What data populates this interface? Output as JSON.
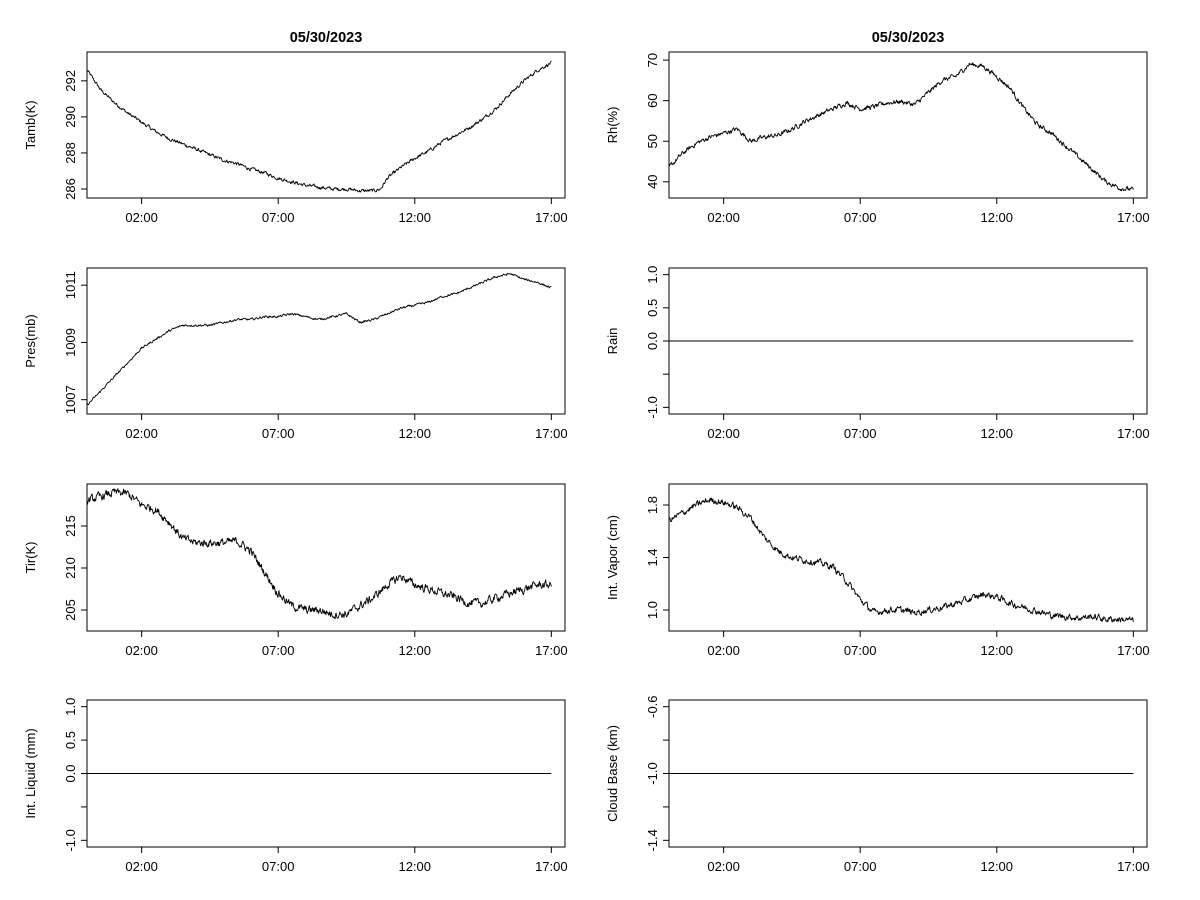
{
  "chart_data": [
    {
      "type": "line",
      "title": "05/30/2023",
      "ylabel": "Tamb(K)",
      "xlim": [
        0.0,
        17.5
      ],
      "ylim": [
        285.5,
        293.6
      ],
      "xticks": [
        2,
        7,
        12,
        17
      ],
      "xtick_labels": [
        "02:00",
        "07:00",
        "12:00",
        "17:00"
      ],
      "yticks": [
        286,
        288,
        290,
        292
      ],
      "ytick_labels": [
        "286",
        "288",
        "290",
        "292"
      ],
      "series": [
        {
          "x": [
            0.0,
            0.5,
            1.0,
            1.5,
            2.0,
            2.5,
            3.0,
            3.5,
            4.0,
            4.5,
            5.0,
            5.5,
            6.0,
            6.5,
            7.0,
            7.5,
            8.0,
            8.5,
            9.0,
            9.5,
            10.0,
            10.5,
            10.75,
            11.0,
            11.5,
            12.0,
            12.5,
            13.0,
            13.5,
            14.0,
            14.5,
            15.0,
            15.5,
            16.0,
            16.5,
            17.0
          ],
          "y": [
            292.6,
            291.5,
            290.8,
            290.2,
            289.7,
            289.2,
            288.8,
            288.5,
            288.2,
            287.9,
            287.6,
            287.4,
            287.1,
            286.9,
            286.6,
            286.4,
            286.2,
            286.1,
            286.0,
            286.0,
            285.9,
            285.9,
            286.0,
            286.6,
            287.2,
            287.7,
            288.1,
            288.6,
            289.0,
            289.4,
            289.9,
            290.5,
            291.3,
            292.0,
            292.6,
            293.0
          ],
          "noise": 0.1
        }
      ]
    },
    {
      "type": "line",
      "title": "05/30/2023",
      "ylabel": "Rh(%)",
      "xlim": [
        0.0,
        17.5
      ],
      "ylim": [
        36,
        72
      ],
      "xticks": [
        2,
        7,
        12,
        17
      ],
      "xtick_labels": [
        "02:00",
        "07:00",
        "12:00",
        "17:00"
      ],
      "yticks": [
        40,
        50,
        60,
        70
      ],
      "ytick_labels": [
        "40",
        "50",
        "60",
        "70"
      ],
      "series": [
        {
          "x": [
            0.0,
            0.5,
            1.0,
            1.5,
            2.0,
            2.5,
            3.0,
            3.5,
            4.0,
            4.5,
            5.0,
            5.5,
            6.0,
            6.5,
            7.0,
            7.5,
            8.0,
            8.5,
            9.0,
            9.5,
            10.0,
            10.5,
            11.0,
            11.5,
            12.0,
            12.5,
            13.0,
            13.5,
            14.0,
            14.5,
            15.0,
            15.5,
            16.0,
            16.5,
            17.0
          ],
          "y": [
            43.5,
            47.0,
            49.5,
            51.0,
            52.0,
            53.0,
            50.0,
            51.0,
            51.5,
            53.0,
            55.0,
            56.5,
            58.0,
            59.5,
            58.0,
            58.5,
            59.5,
            59.8,
            59.0,
            62.0,
            65.0,
            66.0,
            69.0,
            68.5,
            66.0,
            63.0,
            58.0,
            54.0,
            52.0,
            49.0,
            46.0,
            43.0,
            40.0,
            38.5,
            38.0
          ],
          "noise": 0.6
        }
      ]
    },
    {
      "type": "line",
      "ylabel": "Pres(mb)",
      "xlim": [
        0.0,
        17.5
      ],
      "ylim": [
        1006.5,
        1011.6
      ],
      "xticks": [
        2,
        7,
        12,
        17
      ],
      "xtick_labels": [
        "02:00",
        "07:00",
        "12:00",
        "17:00"
      ],
      "yticks": [
        1007,
        1009,
        1011
      ],
      "ytick_labels": [
        "1007",
        "1009",
        "1011"
      ],
      "series": [
        {
          "x": [
            0.0,
            0.5,
            1.0,
            1.5,
            2.0,
            2.5,
            3.0,
            3.5,
            4.0,
            4.5,
            5.0,
            5.5,
            6.0,
            6.5,
            7.0,
            7.5,
            8.0,
            8.5,
            9.0,
            9.5,
            10.0,
            10.5,
            11.0,
            11.5,
            12.0,
            12.5,
            13.0,
            13.5,
            14.0,
            14.5,
            15.0,
            15.5,
            16.0,
            16.5,
            17.0
          ],
          "y": [
            1006.8,
            1007.3,
            1007.8,
            1008.3,
            1008.8,
            1009.1,
            1009.4,
            1009.6,
            1009.6,
            1009.6,
            1009.7,
            1009.8,
            1009.8,
            1009.9,
            1009.9,
            1010.0,
            1009.9,
            1009.8,
            1009.9,
            1010.0,
            1009.7,
            1009.8,
            1010.0,
            1010.2,
            1010.3,
            1010.4,
            1010.6,
            1010.7,
            1010.9,
            1011.1,
            1011.3,
            1011.4,
            1011.2,
            1011.1,
            1010.9
          ],
          "noise": 0.04
        }
      ]
    },
    {
      "type": "line",
      "ylabel": "Rain",
      "xlim": [
        0.0,
        17.5
      ],
      "ylim": [
        -1.1,
        1.1
      ],
      "xticks": [
        2,
        7,
        12,
        17
      ],
      "xtick_labels": [
        "02:00",
        "07:00",
        "12:00",
        "17:00"
      ],
      "yticks": [
        -1.0,
        -0.5,
        0.0,
        0.5,
        1.0
      ],
      "ytick_labels": [
        "-1.0",
        "",
        "0.0",
        "0.5",
        "1.0"
      ],
      "series": [
        {
          "x": [
            0.0,
            17.0
          ],
          "y": [
            0.0,
            0.0
          ],
          "noise": 0
        }
      ]
    },
    {
      "type": "line",
      "ylabel": "Tir(K)",
      "xlim": [
        0.0,
        17.5
      ],
      "ylim": [
        202.5,
        220.0
      ],
      "xticks": [
        2,
        7,
        12,
        17
      ],
      "xtick_labels": [
        "02:00",
        "07:00",
        "12:00",
        "17:00"
      ],
      "yticks": [
        205,
        210,
        215
      ],
      "ytick_labels": [
        "205",
        "210",
        "215"
      ],
      "series": [
        {
          "x": [
            0.0,
            0.5,
            1.0,
            1.5,
            2.0,
            2.5,
            3.0,
            3.5,
            4.0,
            4.5,
            5.0,
            5.5,
            6.0,
            6.5,
            7.0,
            7.5,
            8.0,
            8.5,
            9.0,
            9.5,
            10.0,
            10.5,
            11.0,
            11.5,
            12.0,
            12.5,
            13.0,
            13.5,
            14.0,
            14.5,
            15.0,
            15.5,
            16.0,
            16.5,
            17.0
          ],
          "y": [
            218.0,
            218.5,
            219.0,
            218.8,
            217.5,
            217.0,
            215.5,
            213.5,
            213.0,
            213.0,
            213.0,
            213.2,
            212.0,
            209.5,
            207.0,
            205.5,
            205.0,
            205.0,
            204.5,
            204.5,
            205.5,
            206.5,
            208.0,
            209.0,
            208.0,
            207.5,
            207.0,
            206.5,
            205.8,
            205.8,
            206.5,
            207.0,
            207.5,
            208.0,
            208.0
          ],
          "noise": 0.5
        }
      ]
    },
    {
      "type": "line",
      "ylabel": "Int. Vapor (cm)",
      "xlim": [
        0.0,
        17.5
      ],
      "ylim": [
        0.84,
        1.96
      ],
      "xticks": [
        2,
        7,
        12,
        17
      ],
      "xtick_labels": [
        "02:00",
        "07:00",
        "12:00",
        "17:00"
      ],
      "yticks": [
        1.0,
        1.4,
        1.8
      ],
      "ytick_labels": [
        "1.0",
        "1.4",
        "1.8"
      ],
      "series": [
        {
          "x": [
            0.0,
            0.5,
            1.0,
            1.5,
            2.0,
            2.5,
            3.0,
            3.5,
            4.0,
            4.5,
            5.0,
            5.5,
            6.0,
            6.5,
            7.0,
            7.5,
            8.0,
            8.5,
            9.0,
            9.5,
            10.0,
            10.5,
            11.0,
            11.5,
            12.0,
            12.5,
            13.0,
            13.5,
            14.0,
            14.5,
            15.0,
            15.5,
            16.0,
            16.5,
            17.0
          ],
          "y": [
            1.68,
            1.74,
            1.8,
            1.84,
            1.82,
            1.78,
            1.7,
            1.55,
            1.45,
            1.4,
            1.38,
            1.36,
            1.33,
            1.22,
            1.08,
            0.98,
            1.0,
            1.0,
            0.98,
            1.0,
            1.02,
            1.05,
            1.08,
            1.12,
            1.1,
            1.05,
            1.02,
            0.99,
            0.96,
            0.95,
            0.94,
            0.95,
            0.93,
            0.93,
            0.92
          ],
          "noise": 0.025
        }
      ]
    },
    {
      "type": "line",
      "ylabel": "Int. Liquid (mm)",
      "xlim": [
        0.0,
        17.5
      ],
      "ylim": [
        -1.1,
        1.1
      ],
      "xticks": [
        2,
        7,
        12,
        17
      ],
      "xtick_labels": [
        "02:00",
        "07:00",
        "12:00",
        "17:00"
      ],
      "yticks": [
        -1.0,
        -0.5,
        0.0,
        0.5,
        1.0
      ],
      "ytick_labels": [
        "-1.0",
        "",
        "0.0",
        "0.5",
        "1.0"
      ],
      "series": [
        {
          "x": [
            0.0,
            17.0
          ],
          "y": [
            0.0,
            0.0
          ],
          "noise": 0
        }
      ]
    },
    {
      "type": "line",
      "ylabel": "Cloud Base (km)",
      "xlim": [
        0.0,
        17.5
      ],
      "ylim": [
        -1.44,
        -0.56
      ],
      "xticks": [
        2,
        7,
        12,
        17
      ],
      "xtick_labels": [
        "02:00",
        "07:00",
        "12:00",
        "17:00"
      ],
      "yticks": [
        -1.4,
        -1.2,
        -1.0,
        -0.8,
        -0.6
      ],
      "ytick_labels": [
        "-1.4",
        "",
        "-1.0",
        "",
        "-0.6"
      ],
      "series": [
        {
          "x": [
            0.0,
            17.0
          ],
          "y": [
            -1.0,
            -1.0
          ],
          "noise": 0
        }
      ]
    }
  ]
}
